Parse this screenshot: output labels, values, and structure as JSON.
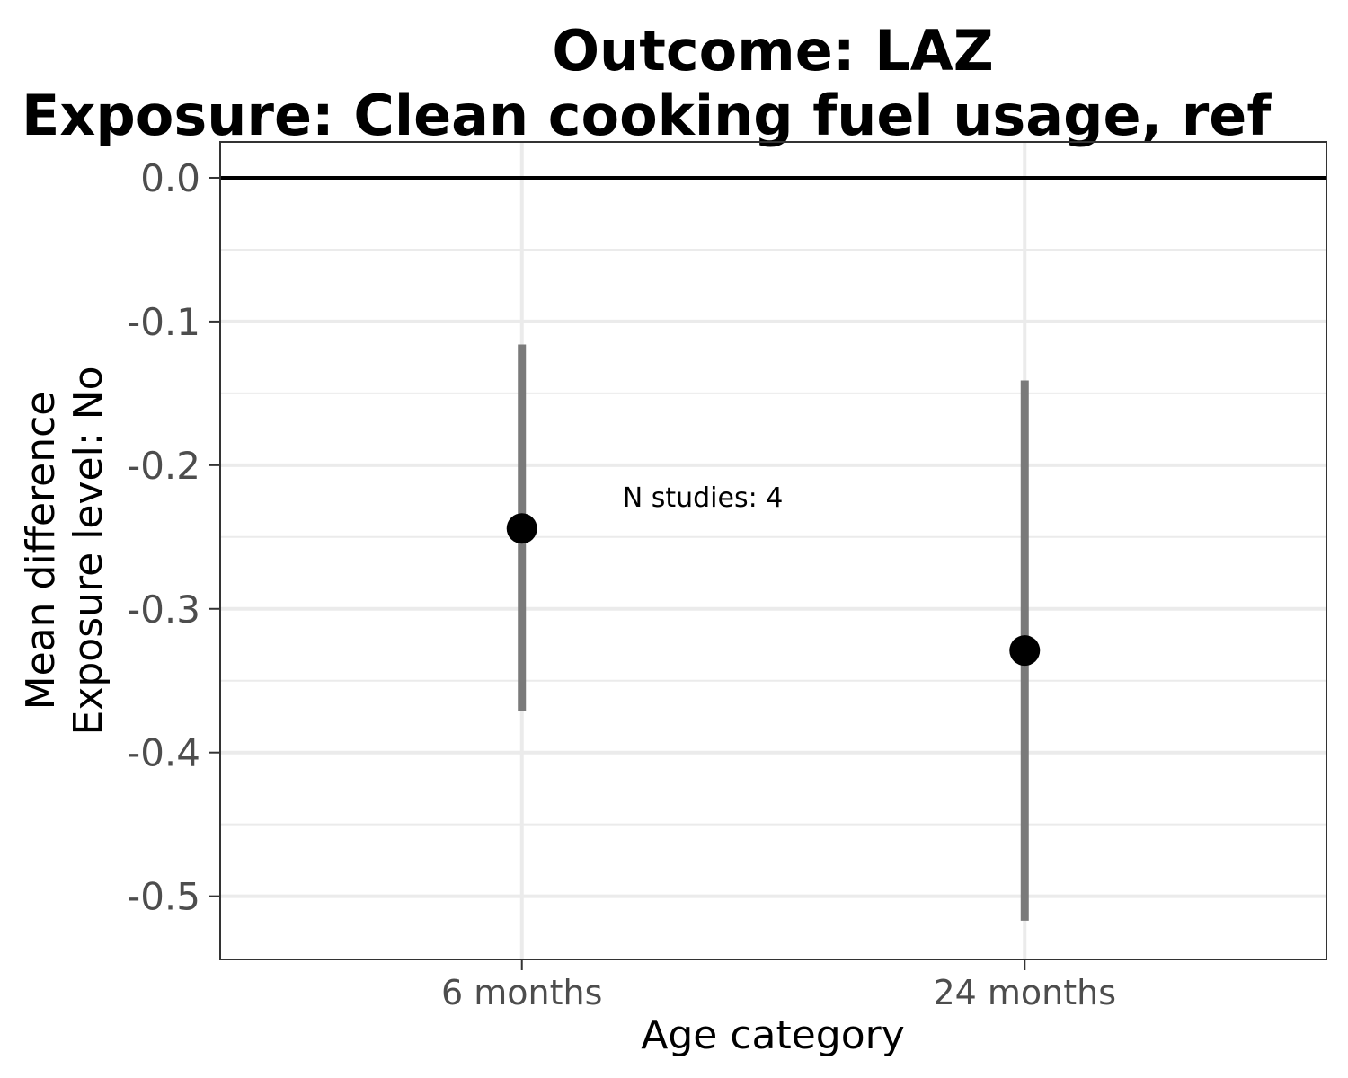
{
  "chart_data": {
    "type": "scatter",
    "title_lines": [
      "Outcome: LAZ",
      "Exposure: Clean cooking fuel usage, ref"
    ],
    "xlabel": "Age category",
    "ylabel_lines": [
      "Mean difference",
      "Exposure level: No"
    ],
    "categories": [
      "6 months",
      "24 months"
    ],
    "points": [
      {
        "category": "6 months",
        "estimate": -0.244,
        "ci_lower": -0.371,
        "ci_upper": -0.116
      },
      {
        "category": "24 months",
        "estimate": -0.329,
        "ci_lower": -0.517,
        "ci_upper": -0.141
      }
    ],
    "annotation": {
      "text": "N studies: 4",
      "category": "6 months",
      "y": -0.222
    },
    "reference_line": 0.0,
    "yticks": [
      0.0,
      -0.1,
      -0.2,
      -0.3,
      -0.4,
      -0.5
    ],
    "ytick_labels": [
      "0.0",
      "-0.1",
      "-0.2",
      "-0.3",
      "-0.4",
      "-0.5"
    ],
    "ylim": [
      -0.544,
      0.025
    ],
    "grid": true,
    "colors": {
      "point": "#000000",
      "errorbar": "#7a7a7a",
      "grid": "#ebebeb",
      "reference": "#000000"
    }
  }
}
